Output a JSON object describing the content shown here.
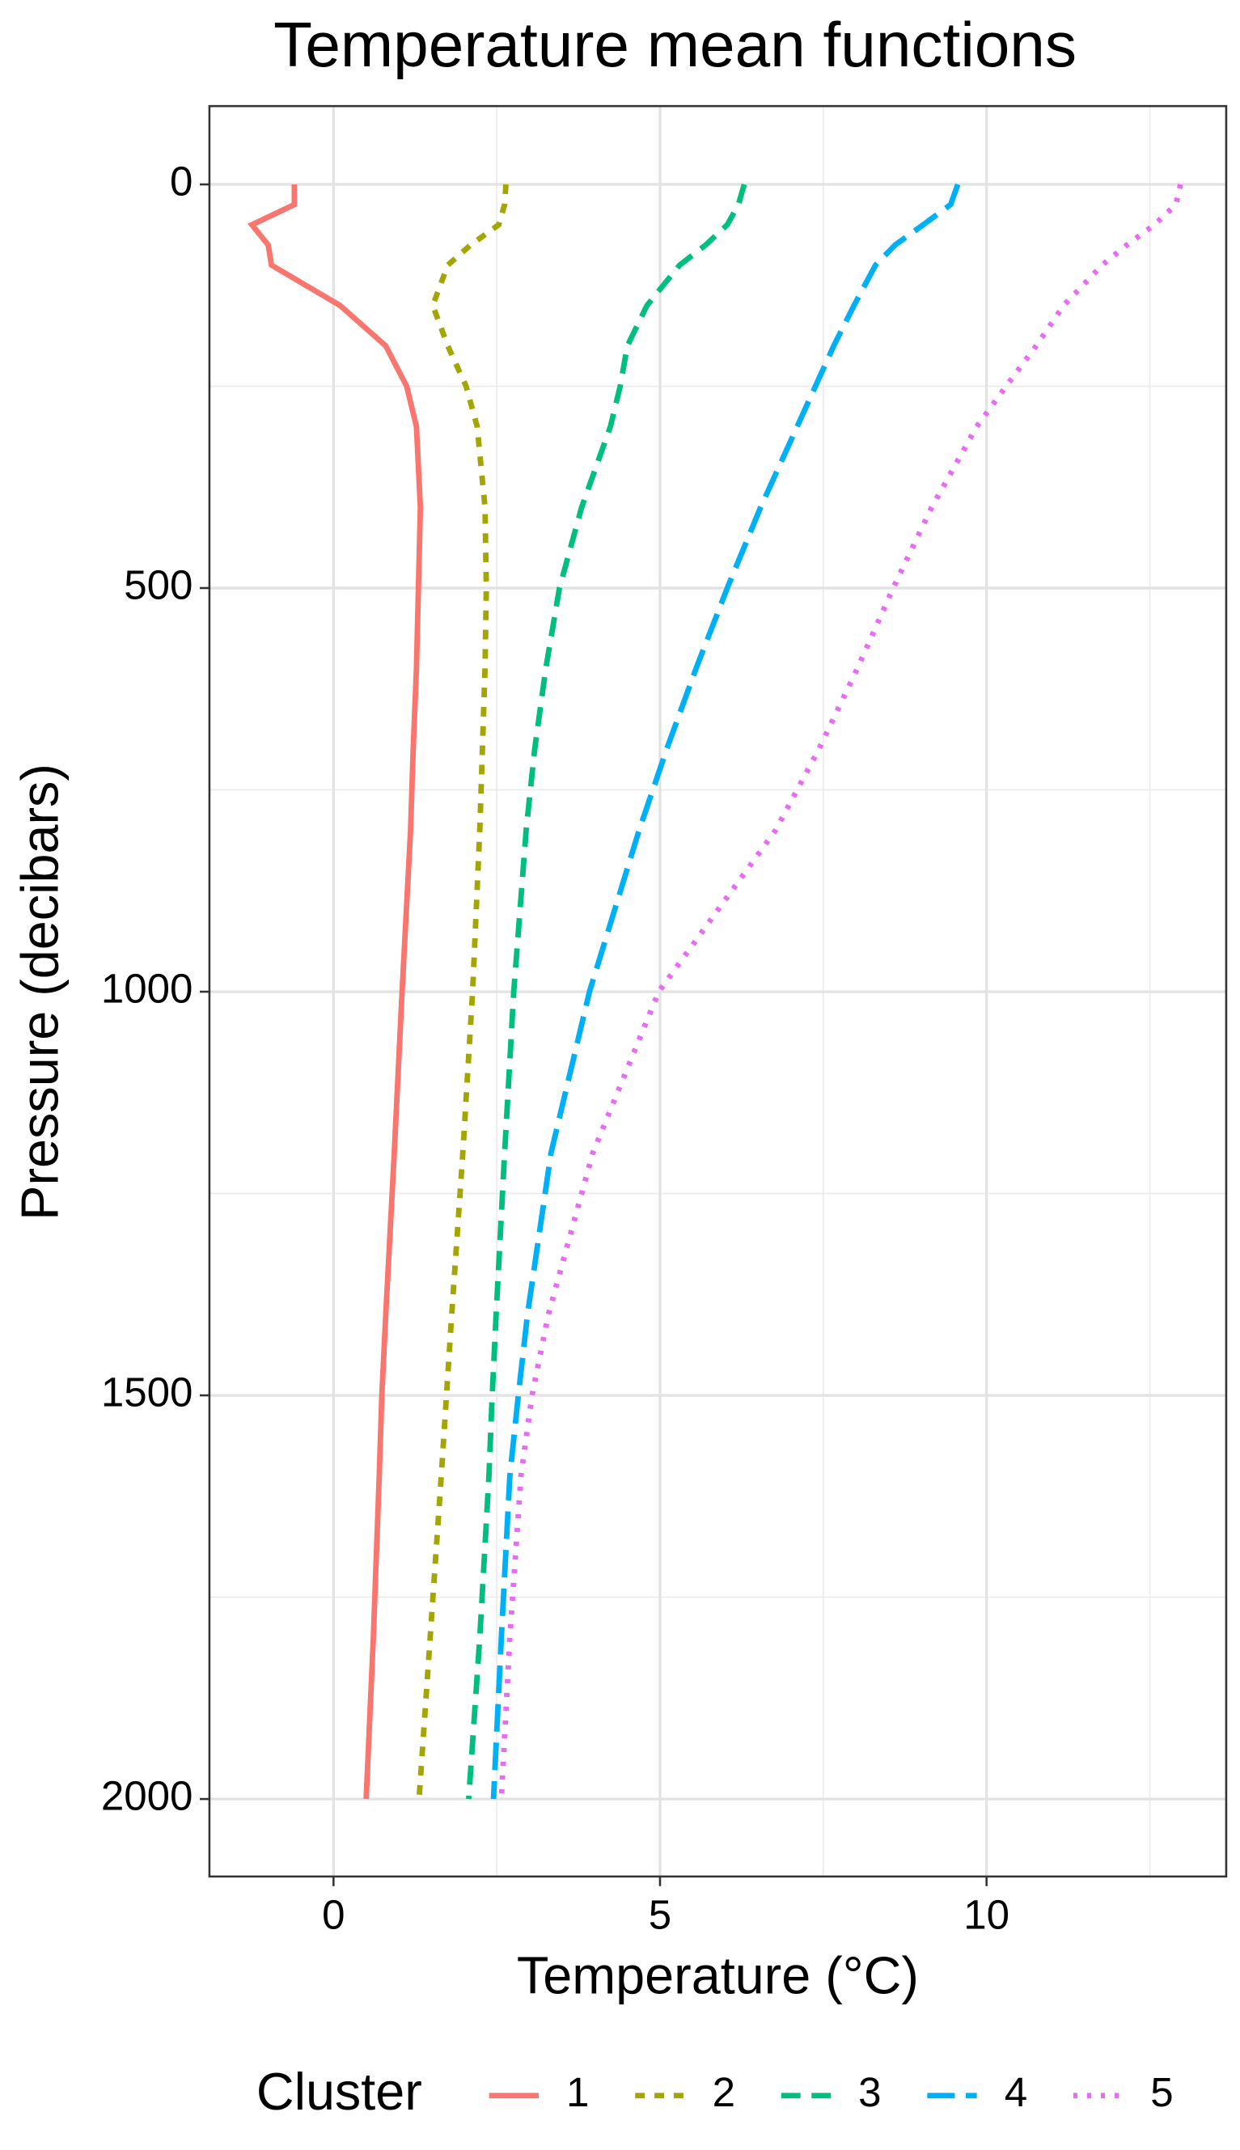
{
  "chart_data": {
    "type": "line",
    "title": "Temperature mean functions",
    "xlabel": "Temperature (°C)",
    "ylabel": "Pressure (decibars)",
    "legend_title": "Cluster",
    "legend_position": "bottom",
    "grid": true,
    "y_reversed": true,
    "xlim": [
      -1.9,
      13.67
    ],
    "ylim": [
      -97,
      2096
    ],
    "xticks": [
      0,
      5,
      10
    ],
    "yticks": [
      0,
      500,
      1000,
      1500,
      2000
    ],
    "xminor": [
      2.5,
      7.5,
      12.5
    ],
    "yminor": [
      250,
      750,
      1250,
      1750
    ],
    "y": [
      0,
      25,
      50,
      75,
      100,
      150,
      200,
      250,
      300,
      400,
      500,
      600,
      700,
      800,
      1000,
      1200,
      1400,
      1500,
      1600,
      1800,
      2000
    ],
    "series": [
      {
        "name": "1",
        "color": "#f8766d",
        "linetype": "solid",
        "values": [
          -0.6,
          -0.6,
          -1.25,
          -1.0,
          -0.95,
          0.1,
          0.8,
          1.12,
          1.27,
          1.33,
          1.3,
          1.27,
          1.22,
          1.18,
          1.05,
          0.93,
          0.8,
          0.74,
          0.7,
          0.61,
          0.5
        ]
      },
      {
        "name": "2",
        "color": "#a3a500",
        "linetype": "dashed",
        "values": [
          2.64,
          2.62,
          2.53,
          2.1,
          1.75,
          1.52,
          1.75,
          2.03,
          2.2,
          2.32,
          2.34,
          2.32,
          2.28,
          2.24,
          2.13,
          1.98,
          1.81,
          1.73,
          1.65,
          1.48,
          1.31
        ]
      },
      {
        "name": "3",
        "color": "#00bf7d",
        "linetype": "longdash",
        "values": [
          6.29,
          6.2,
          6.03,
          5.7,
          5.3,
          4.8,
          4.5,
          4.39,
          4.24,
          3.8,
          3.46,
          3.25,
          3.08,
          2.95,
          2.76,
          2.62,
          2.49,
          2.43,
          2.38,
          2.24,
          2.07
        ]
      },
      {
        "name": "4",
        "color": "#00b0f6",
        "linetype": "verylongdash",
        "values": [
          9.56,
          9.45,
          9.03,
          8.6,
          8.3,
          7.97,
          7.66,
          7.38,
          7.1,
          6.54,
          6.03,
          5.55,
          5.1,
          4.68,
          3.92,
          3.33,
          2.97,
          2.83,
          2.7,
          2.57,
          2.45
        ]
      },
      {
        "name": "5",
        "color": "#e76bf3",
        "linetype": "dotted",
        "values": [
          12.97,
          12.9,
          12.57,
          12.15,
          11.77,
          11.18,
          10.76,
          10.3,
          9.85,
          9.16,
          8.57,
          8.02,
          7.43,
          6.77,
          4.98,
          3.97,
          3.29,
          3.04,
          2.87,
          2.7,
          2.57
        ]
      }
    ]
  }
}
